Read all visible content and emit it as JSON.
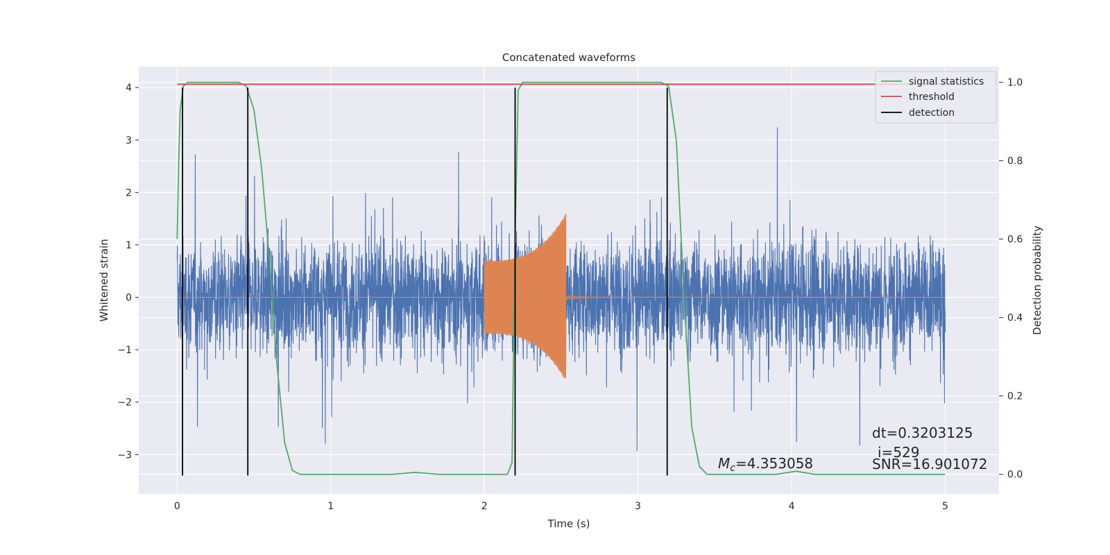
{
  "chart_data": {
    "type": "line",
    "title": "Concatenated waveforms",
    "xlabel": "Time (s)",
    "ylabel": "Whitened strain",
    "ylabel_right": "Detection probability",
    "xlim": [
      -0.25,
      5.35
    ],
    "ylim": [
      -3.75,
      4.4
    ],
    "ylim_right": [
      -0.05,
      1.04
    ],
    "x_ticks": [
      0,
      1,
      2,
      3,
      4,
      5
    ],
    "y_ticks": [
      -3,
      -2,
      -1,
      0,
      1,
      2,
      3,
      4
    ],
    "y_ticks_right": [
      0.0,
      0.2,
      0.4,
      0.6,
      0.8,
      1.0
    ],
    "x_tick_labels": [
      "0",
      "1",
      "2",
      "3",
      "4",
      "5"
    ],
    "y_tick_labels": [
      "−3",
      "−2",
      "−1",
      "0",
      "1",
      "2",
      "3",
      "4"
    ],
    "y_tick_labels_right": [
      "0.0",
      "0.2",
      "0.4",
      "0.6",
      "0.8",
      "1.0"
    ],
    "grid": true,
    "legend_position": "top-right",
    "colors": {
      "background": "#eaeaf2",
      "grid": "#ffffff",
      "noise": "#4c72b0",
      "template": "#dd8452",
      "signal_statistics": "#55a868",
      "threshold": "#c44e52",
      "detection": "#000000"
    },
    "series": [
      {
        "name": "signal statistics",
        "axis": "right",
        "x": [
          0,
          0.01,
          0.02,
          0.04,
          0.07,
          0.1,
          0.4,
          0.45,
          0.5,
          0.55,
          0.6,
          0.65,
          0.7,
          0.75,
          0.8,
          1.4,
          1.55,
          1.7,
          2.15,
          2.18,
          2.2,
          2.22,
          2.25,
          3.15,
          3.2,
          3.25,
          3.3,
          3.35,
          3.4,
          3.45,
          3.5,
          3.9,
          4.03,
          4.15,
          5.0
        ],
        "values": [
          0.6,
          0.8,
          0.93,
          0.99,
          1.0,
          1.0,
          1.0,
          0.99,
          0.93,
          0.78,
          0.55,
          0.28,
          0.08,
          0.01,
          0.0,
          0.0,
          0.005,
          0.0,
          0.0,
          0.03,
          0.6,
          0.98,
          1.0,
          1.0,
          0.99,
          0.85,
          0.45,
          0.12,
          0.02,
          0.0,
          0.0,
          0.0,
          0.008,
          0.0,
          0.0
        ]
      },
      {
        "name": "threshold",
        "axis": "right",
        "x": [
          0,
          5
        ],
        "values": [
          0.995,
          0.995
        ]
      },
      {
        "name": "detection",
        "axis": "left",
        "x": [
          0.035,
          0.46,
          2.2,
          3.19
        ]
      }
    ],
    "annotations": {
      "mc_symbol": "M",
      "mc_subscript": "c",
      "mc_value": "=4.353058",
      "dt": "dt=0.3203125",
      "i": "i=529",
      "snr": "SNR=16.901072"
    }
  }
}
